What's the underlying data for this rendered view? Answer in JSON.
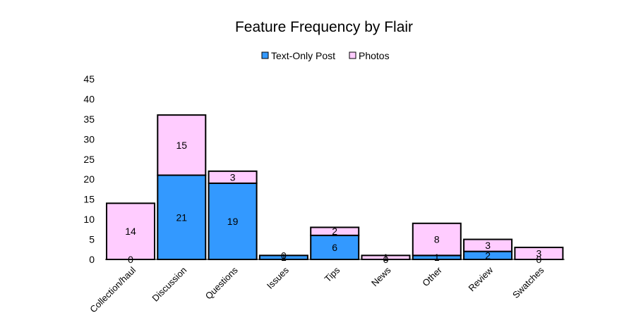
{
  "chart_data": {
    "type": "bar",
    "stacked": true,
    "title": "Feature Frequency by Flair",
    "xlabel": "",
    "ylabel": "",
    "ylim": [
      0,
      45
    ],
    "yticks": [
      "0",
      "5",
      "10",
      "15",
      "20",
      "25",
      "30",
      "35",
      "40",
      "45"
    ],
    "grid": false,
    "legend_position": "top",
    "categories": [
      "Collection/haul",
      "Discussion",
      "Questions",
      "Issues",
      "Tips",
      "News",
      "Other",
      "Review",
      "Swatches"
    ],
    "series": [
      {
        "name": "Text-Only Post",
        "color": "#3399ff",
        "values": [
          0,
          21,
          19,
          1,
          6,
          0,
          1,
          2,
          0
        ]
      },
      {
        "name": "Photos",
        "color": "#ffccff",
        "values": [
          14,
          15,
          3,
          0,
          2,
          1,
          8,
          3,
          3
        ]
      }
    ]
  }
}
